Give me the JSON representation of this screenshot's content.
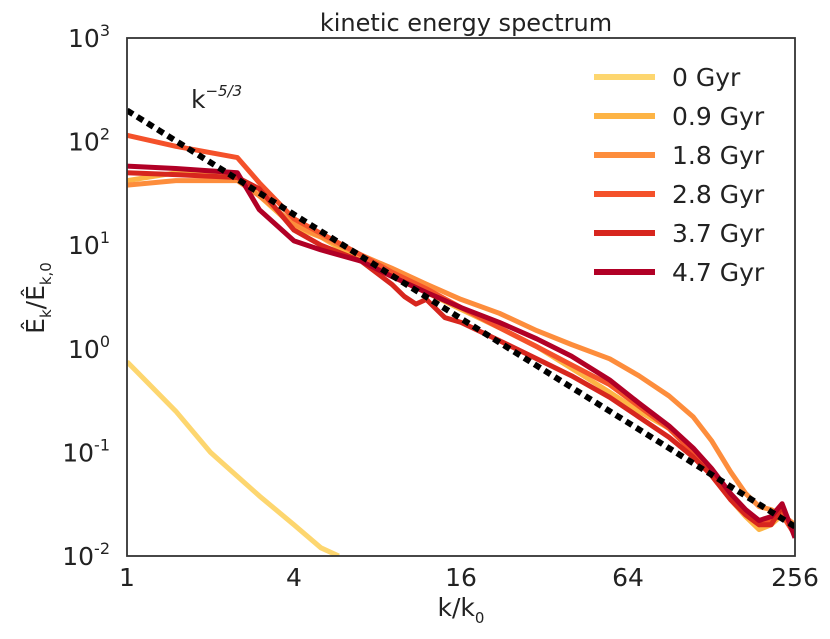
{
  "chart_data": {
    "type": "line",
    "title": "kinetic energy spectrum",
    "xlabel": "k/k",
    "xlabel_sub": "0",
    "ylabel": "Ê",
    "ylabel_sub1": "k",
    "ylabel_mid": "/Ê",
    "ylabel_sub2": "k,0",
    "xscale": "log2",
    "yscale": "log10",
    "xlim": [
      1,
      256
    ],
    "ylim": [
      0.01,
      1000
    ],
    "x_ticks": [
      {
        "value": 1,
        "label": "1"
      },
      {
        "value": 4,
        "label": "4"
      },
      {
        "value": 16,
        "label": "16"
      },
      {
        "value": 64,
        "label": "64"
      },
      {
        "value": 256,
        "label": "256"
      }
    ],
    "y_ticks": [
      {
        "value": 0.01,
        "base": "10",
        "exp": "-2"
      },
      {
        "value": 0.1,
        "base": "10",
        "exp": "-1"
      },
      {
        "value": 1,
        "base": "10",
        "exp": "0"
      },
      {
        "value": 10,
        "base": "10",
        "exp": "1"
      },
      {
        "value": 100,
        "base": "10",
        "exp": "2"
      },
      {
        "value": 1000,
        "base": "10",
        "exp": "3"
      }
    ],
    "reference_line": {
      "label_base": "k",
      "label_exp": "−5/3",
      "x": [
        1,
        256
      ],
      "y": [
        200,
        0.0192
      ],
      "color": "#000000",
      "style": "dotted"
    },
    "legend_position": "top-right",
    "series": [
      {
        "name": "0 Gyr",
        "color": "#fdd66f",
        "x": [
          1,
          1.5,
          2,
          3,
          4,
          5,
          5.8
        ],
        "y": [
          0.75,
          0.25,
          0.1,
          0.038,
          0.02,
          0.012,
          0.01
        ]
      },
      {
        "name": "0.9 Gyr",
        "color": "#fdb445",
        "x": [
          1,
          1.5,
          2.5,
          3,
          4,
          5,
          7,
          9,
          12,
          16,
          22,
          30,
          40,
          55,
          70,
          90,
          110,
          128,
          150,
          170,
          190,
          210,
          230,
          256
        ],
        "y": [
          42,
          50,
          45,
          30,
          15,
          12,
          7,
          5,
          3.5,
          2.4,
          1.6,
          1.05,
          0.65,
          0.38,
          0.25,
          0.17,
          0.1,
          0.065,
          0.035,
          0.024,
          0.018,
          0.02,
          0.025,
          0.02
        ]
      },
      {
        "name": "1.8 Gyr",
        "color": "#fd8d3c",
        "x": [
          1,
          1.5,
          2.5,
          3,
          4,
          5,
          7,
          9,
          12,
          16,
          22,
          30,
          40,
          55,
          70,
          90,
          110,
          128,
          150,
          170,
          190,
          210,
          230,
          256
        ],
        "y": [
          38,
          42,
          42,
          30,
          16,
          12,
          8,
          6,
          4.2,
          3,
          2.2,
          1.5,
          1.1,
          0.8,
          0.55,
          0.35,
          0.22,
          0.13,
          0.065,
          0.04,
          0.03,
          0.028,
          0.025,
          0.02
        ]
      },
      {
        "name": "2.8 Gyr",
        "color": "#f4512a",
        "x": [
          1,
          1.5,
          2.5,
          3,
          4,
          5,
          7,
          9,
          12,
          16,
          22,
          30,
          40,
          55,
          70,
          90,
          110,
          128,
          150,
          170,
          190,
          210,
          230,
          256
        ],
        "y": [
          115,
          90,
          70,
          40,
          18,
          13,
          8,
          5.5,
          3.8,
          2.5,
          1.6,
          1.05,
          0.7,
          0.45,
          0.28,
          0.17,
          0.1,
          0.06,
          0.035,
          0.025,
          0.02,
          0.022,
          0.025,
          0.016
        ]
      },
      {
        "name": "3.7 Gyr",
        "color": "#d7261e",
        "x": [
          1,
          1.5,
          2.5,
          3,
          4,
          5,
          7,
          9,
          10,
          11,
          12,
          14,
          16,
          22,
          30,
          40,
          55,
          70,
          90,
          110,
          128,
          150,
          170,
          190,
          210,
          230,
          256
        ],
        "y": [
          50,
          48,
          45,
          35,
          14,
          10,
          7,
          4.2,
          3.2,
          2.7,
          3,
          2,
          1.8,
          1.2,
          0.8,
          0.55,
          0.34,
          0.22,
          0.14,
          0.09,
          0.06,
          0.035,
          0.025,
          0.02,
          0.02,
          0.03,
          0.016
        ]
      },
      {
        "name": "4.7 Gyr",
        "color": "#b10026",
        "x": [
          1,
          1.5,
          2.5,
          3,
          4,
          5,
          7,
          9,
          12,
          16,
          22,
          30,
          40,
          55,
          70,
          90,
          110,
          128,
          150,
          170,
          190,
          210,
          230,
          256
        ],
        "y": [
          58,
          55,
          50,
          22,
          11,
          9,
          7,
          5,
          3.5,
          2.5,
          1.8,
          1.25,
          0.85,
          0.5,
          0.3,
          0.18,
          0.11,
          0.07,
          0.04,
          0.028,
          0.022,
          0.024,
          0.032,
          0.015
        ]
      }
    ]
  }
}
